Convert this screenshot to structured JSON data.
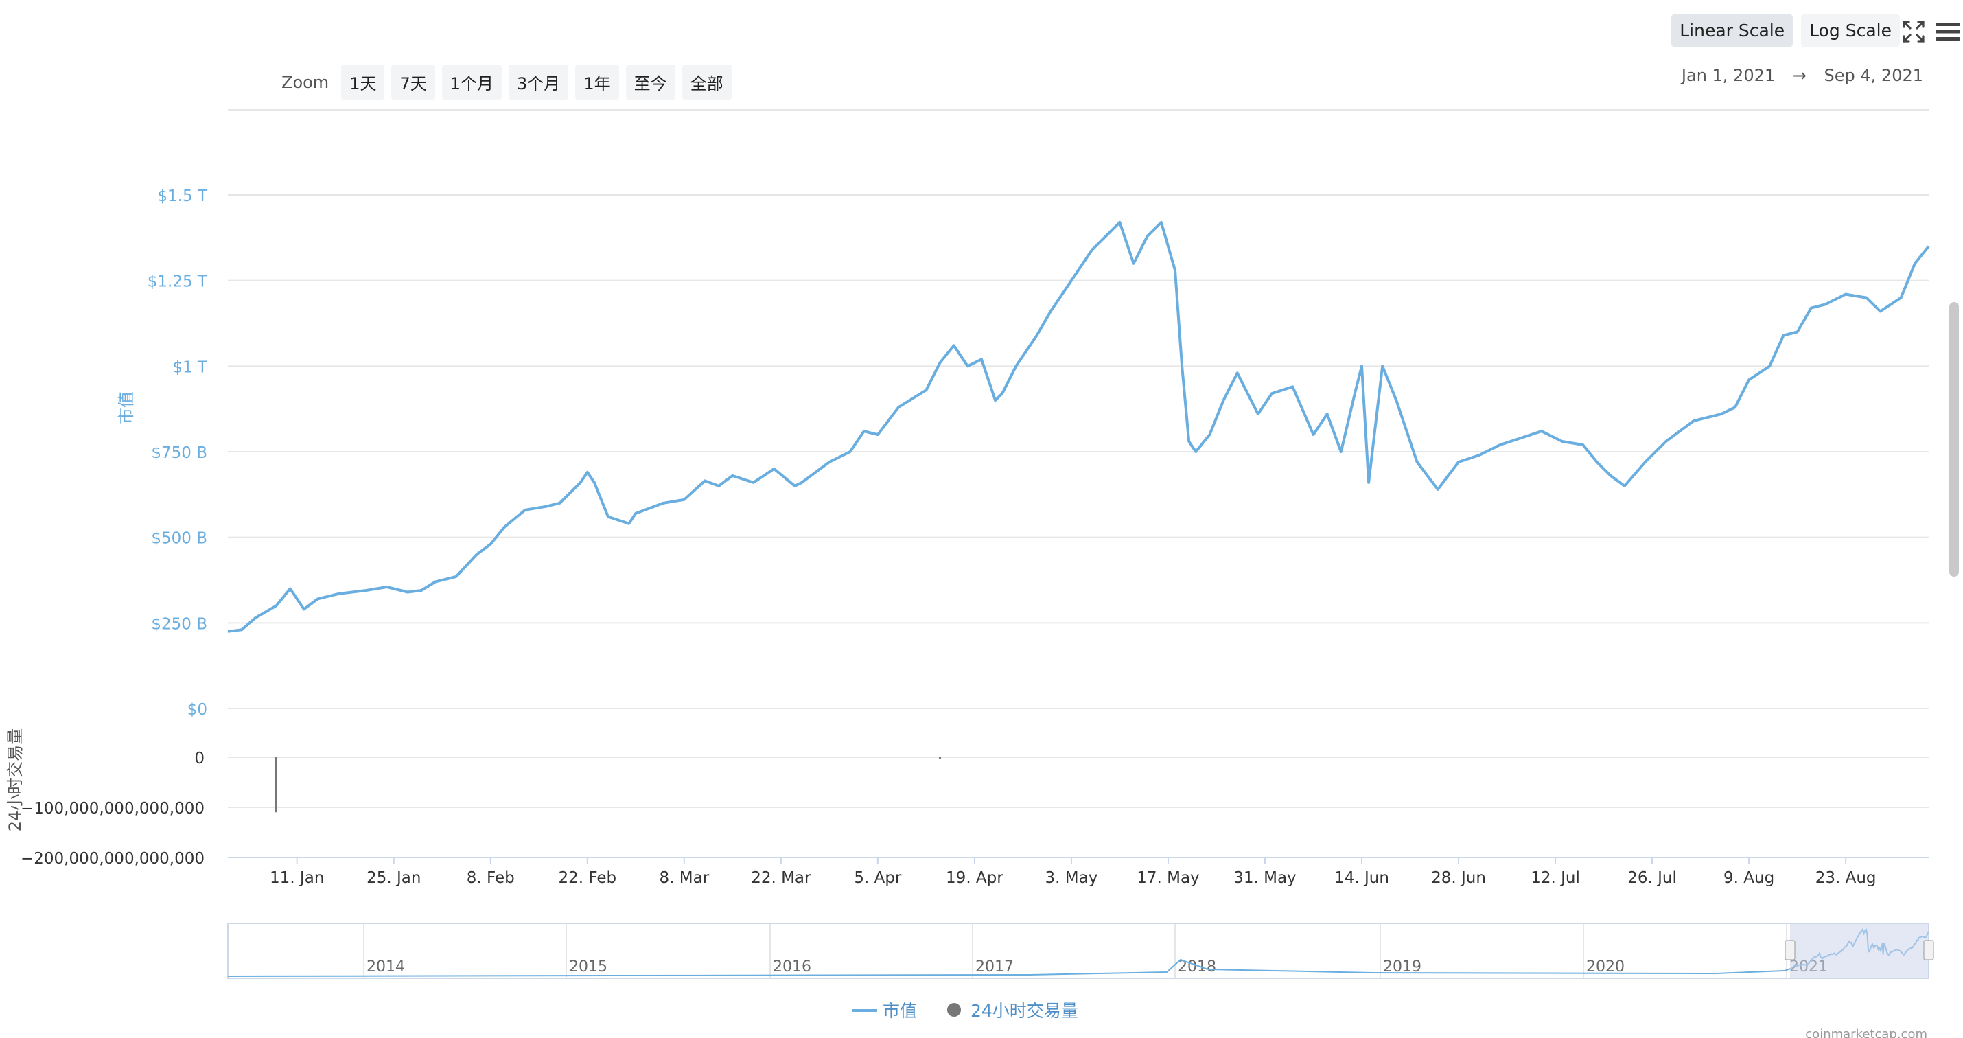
{
  "toolbar": {
    "linear_scale": "Linear Scale",
    "log_scale": "Log Scale",
    "fullscreen_icon": "fullscreen-icon",
    "menu_icon": "hamburger-menu-icon"
  },
  "zoom": {
    "label": "Zoom",
    "buttons": [
      "1天",
      "7天",
      "1个月",
      "3个月",
      "1年",
      "至今",
      "全部"
    ]
  },
  "range": {
    "from": "Jan 1, 2021",
    "arrow": "→",
    "to": "Sep 4, 2021"
  },
  "legend": {
    "market_cap": "市值",
    "volume": "24小时交易量"
  },
  "watermark": "coinmarketcap.com",
  "colors": {
    "line": "#6aaee0",
    "volume": "#777777",
    "grid": "#e6e6e6",
    "navigator_mask": "#ccd6eb"
  },
  "chart_data": {
    "type": "line",
    "title": "",
    "xlabel": "",
    "ylabel": "市值",
    "y_tick_labels": [
      "$0",
      "$250 B",
      "$500 B",
      "$750 B",
      "$1 T",
      "$1.25 T",
      "$1.5 T"
    ],
    "y_ticks": [
      0,
      250,
      500,
      750,
      1000,
      1250,
      1500
    ],
    "y_unit": "B USD",
    "ylim": [
      0,
      1500
    ],
    "x_tick_labels": [
      "11. Jan",
      "25. Jan",
      "8. Feb",
      "22. Feb",
      "8. Mar",
      "22. Mar",
      "5. Apr",
      "19. Apr",
      "3. May",
      "17. May",
      "31. May",
      "14. Jun",
      "28. Jun",
      "12. Jul",
      "26. Jul",
      "9. Aug",
      "23. Aug"
    ],
    "x_tick_dates": [
      "2021-01-11",
      "2021-01-25",
      "2021-02-08",
      "2021-02-22",
      "2021-03-08",
      "2021-03-22",
      "2021-04-05",
      "2021-04-19",
      "2021-05-03",
      "2021-05-17",
      "2021-05-31",
      "2021-06-14",
      "2021-06-28",
      "2021-07-12",
      "2021-07-26",
      "2021-08-09",
      "2021-08-23"
    ],
    "xlim": [
      "2021-01-01",
      "2021-09-04"
    ],
    "grid": true,
    "legend_position": "bottom-center",
    "series": [
      {
        "name": "市值",
        "x": [
          "2021-01-01",
          "2021-01-03",
          "2021-01-05",
          "2021-01-08",
          "2021-01-10",
          "2021-01-12",
          "2021-01-14",
          "2021-01-17",
          "2021-01-21",
          "2021-01-24",
          "2021-01-27",
          "2021-01-29",
          "2021-01-31",
          "2021-02-03",
          "2021-02-06",
          "2021-02-08",
          "2021-02-10",
          "2021-02-13",
          "2021-02-16",
          "2021-02-18",
          "2021-02-21",
          "2021-02-22",
          "2021-02-23",
          "2021-02-25",
          "2021-02-28",
          "2021-03-01",
          "2021-03-05",
          "2021-03-08",
          "2021-03-11",
          "2021-03-13",
          "2021-03-15",
          "2021-03-18",
          "2021-03-21",
          "2021-03-24",
          "2021-03-25",
          "2021-03-29",
          "2021-04-01",
          "2021-04-03",
          "2021-04-05",
          "2021-04-08",
          "2021-04-12",
          "2021-04-14",
          "2021-04-16",
          "2021-04-18",
          "2021-04-20",
          "2021-04-22",
          "2021-04-23",
          "2021-04-25",
          "2021-04-28",
          "2021-04-30",
          "2021-05-03",
          "2021-05-06",
          "2021-05-08",
          "2021-05-10",
          "2021-05-12",
          "2021-05-14",
          "2021-05-16",
          "2021-05-18",
          "2021-05-19",
          "2021-05-20",
          "2021-05-21",
          "2021-05-23",
          "2021-05-25",
          "2021-05-27",
          "2021-05-30",
          "2021-06-01",
          "2021-06-04",
          "2021-06-07",
          "2021-06-09",
          "2021-06-11",
          "2021-06-13",
          "2021-06-14",
          "2021-06-15",
          "2021-06-17",
          "2021-06-19",
          "2021-06-21",
          "2021-06-22",
          "2021-06-25",
          "2021-06-28",
          "2021-07-01",
          "2021-07-04",
          "2021-07-07",
          "2021-07-10",
          "2021-07-13",
          "2021-07-16",
          "2021-07-18",
          "2021-07-20",
          "2021-07-22",
          "2021-07-25",
          "2021-07-28",
          "2021-08-01",
          "2021-08-03",
          "2021-08-05",
          "2021-08-07",
          "2021-08-09",
          "2021-08-12",
          "2021-08-14",
          "2021-08-16",
          "2021-08-18",
          "2021-08-20",
          "2021-08-23",
          "2021-08-26",
          "2021-08-28",
          "2021-08-31",
          "2021-09-02",
          "2021-09-04"
        ],
        "values": [
          225,
          230,
          265,
          300,
          350,
          290,
          320,
          335,
          345,
          355,
          340,
          345,
          370,
          385,
          450,
          480,
          530,
          580,
          590,
          600,
          660,
          690,
          660,
          560,
          540,
          570,
          600,
          610,
          665,
          650,
          680,
          660,
          700,
          650,
          660,
          720,
          750,
          810,
          800,
          880,
          930,
          1010,
          1060,
          1000,
          1020,
          900,
          920,
          1000,
          1090,
          1160,
          1250,
          1340,
          1380,
          1420,
          1300,
          1380,
          1420,
          1280,
          1000,
          780,
          750,
          800,
          900,
          980,
          860,
          920,
          940,
          800,
          860,
          750,
          920,
          1000,
          660,
          1000,
          900,
          780,
          720,
          640,
          720,
          740,
          770,
          790,
          810,
          780,
          770,
          720,
          680,
          650,
          720,
          780,
          840,
          850,
          860,
          880,
          960,
          1000,
          1090,
          1100,
          1170,
          1180,
          1210,
          1200,
          1160,
          1200,
          1300,
          1350
        ]
      },
      {
        "name": "24小时交易量",
        "y_tick_labels": [
          "0",
          "−100,000,000,000,000",
          "−200,000,000,000,000"
        ],
        "ylim": [
          -200000000000000,
          0
        ],
        "spikes": [
          {
            "date": "2021-01-08",
            "value": -110000000000000
          },
          {
            "date": "2021-04-14",
            "value": -3000000000000
          }
        ]
      }
    ],
    "navigator": {
      "years": [
        "2014",
        "2015",
        "2016",
        "2017",
        "2018",
        "2019",
        "2020",
        "2021"
      ],
      "selected_range": [
        "2021-01-01",
        "2021-09-04"
      ]
    }
  }
}
